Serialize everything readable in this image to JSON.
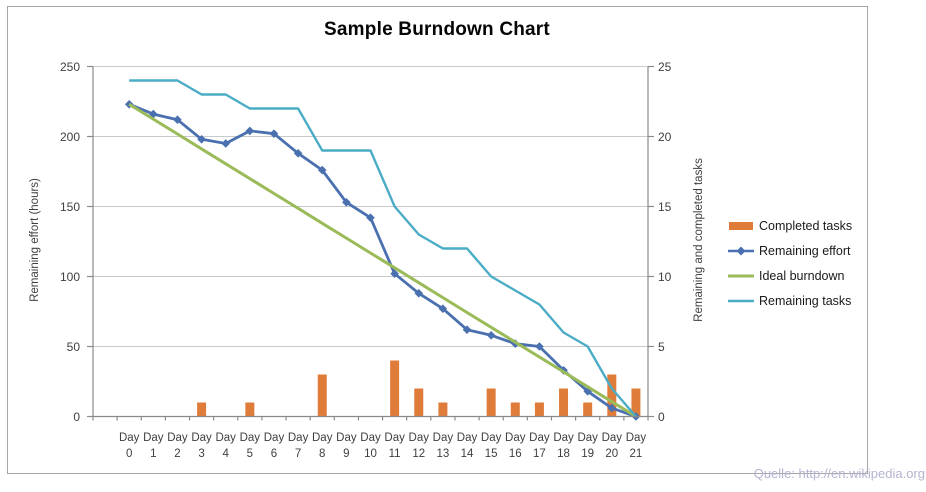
{
  "title": "Sample Burndown Chart",
  "source_attribution": "Quelle: http://en.wikipedia.org",
  "chart_data": {
    "type": "combo",
    "x_axis": {
      "label_prefix": "Day",
      "categories": [
        "0",
        "1",
        "2",
        "3",
        "4",
        "5",
        "6",
        "7",
        "8",
        "9",
        "10",
        "11",
        "12",
        "13",
        "14",
        "15",
        "16",
        "17",
        "18",
        "19",
        "20",
        "21"
      ]
    },
    "left_axis": {
      "title": "Remaining effort (hours)",
      "min": 0,
      "max": 250,
      "ticks": [
        0,
        50,
        100,
        150,
        200,
        250
      ]
    },
    "right_axis": {
      "title": "Remaining and completed tasks",
      "min": 0,
      "max": 25,
      "ticks": [
        0,
        5,
        10,
        15,
        20,
        25
      ]
    },
    "grid": true,
    "legend_position": "right",
    "series": [
      {
        "name": "Completed tasks",
        "type": "bar",
        "axis": "right",
        "color": "#E07C39",
        "values": [
          0,
          0,
          0,
          1,
          0,
          1,
          0,
          0,
          3,
          0,
          0,
          4,
          2,
          1,
          0,
          2,
          1,
          1,
          2,
          1,
          3,
          2
        ]
      },
      {
        "name": "Remaining effort",
        "type": "line",
        "axis": "left",
        "marker": "diamond",
        "color": "#4A70B0",
        "values": [
          223,
          216,
          212,
          198,
          195,
          204,
          202,
          188,
          176,
          153,
          142,
          102,
          88,
          77,
          62,
          58,
          52,
          50,
          33,
          18,
          6,
          0
        ]
      },
      {
        "name": "Ideal burndown",
        "type": "line",
        "axis": "left",
        "color": "#9BBB59",
        "values": [
          223,
          212.4,
          201.8,
          191.1,
          180.5,
          169.9,
          159.3,
          148.7,
          138,
          127.4,
          116.8,
          106.2,
          95.6,
          84.9,
          74.3,
          63.7,
          53.1,
          42.5,
          31.9,
          21.2,
          10.6,
          0
        ]
      },
      {
        "name": "Remaining tasks",
        "type": "line",
        "axis": "right",
        "color": "#4BACC6",
        "values": [
          24,
          24,
          24,
          23,
          23,
          22,
          22,
          22,
          19,
          19,
          19,
          15,
          13,
          12,
          12,
          10,
          9,
          8,
          6,
          5,
          2,
          0
        ]
      }
    ],
    "colors": {
      "gridline": "#C9C9C9",
      "axis_line": "#8A8A8A",
      "tick_text": "#3F3F3F",
      "frame_border": "#A7A7A7",
      "source_text": "#B4B4D1"
    }
  }
}
